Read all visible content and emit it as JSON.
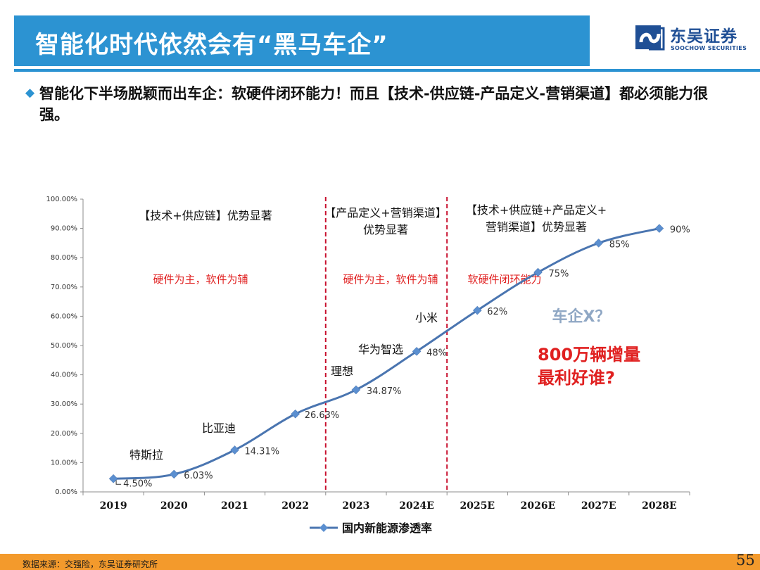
{
  "title": "智能化时代依然会有“黑马车企”",
  "logo": {
    "name_cn": "东吴证券",
    "name_en": "SOOCHOW SECURITIES"
  },
  "headline": "智能化下半场脱颖而出车企：软硬件闭环能力！而且【技术-供应链-产品定义-营销渠道】都必须能力很强。",
  "chart_data": {
    "type": "line",
    "categories": [
      "2019",
      "2020",
      "2021",
      "2022",
      "2023",
      "2024E",
      "2025E",
      "2026E",
      "2027E",
      "2028E"
    ],
    "series": [
      {
        "name": "国内新能源渗透率",
        "values": [
          4.5,
          6.03,
          14.31,
          26.63,
          34.87,
          48,
          62,
          75,
          85,
          90
        ],
        "labels": [
          "4.50%",
          "6.03%",
          "14.31%",
          "26.63%",
          "34.87%",
          "48%",
          "62%",
          "75%",
          "85%",
          "90%"
        ]
      }
    ],
    "yticks": [
      "0.00%",
      "10.00%",
      "20.00%",
      "30.00%",
      "40.00%",
      "50.00%",
      "60.00%",
      "70.00%",
      "80.00%",
      "90.00%",
      "100.00%"
    ],
    "ylim": [
      0,
      100
    ],
    "grid": false,
    "legend": "bottom",
    "dividers_after": [
      "2022",
      "2024E"
    ],
    "phase_headers": [
      {
        "lines": [
          "【技术+供应链】优势显著"
        ]
      },
      {
        "lines": [
          "【产品定义+营销渠道】",
          "优势显著"
        ]
      },
      {
        "lines": [
          "【技术+供应链+产品定义+",
          "营销渠道】优势显著"
        ]
      }
    ],
    "phase_notes": [
      "硬件为主，软件为辅",
      "硬件为主，软件为辅",
      "软硬件闭环能力"
    ],
    "company_annotations": [
      {
        "text": "特斯拉",
        "near": "2019"
      },
      {
        "text": "比亚迪",
        "near": "2021"
      },
      {
        "text": "理想",
        "near": "2023"
      },
      {
        "text": "华为智选",
        "near": "2024E"
      },
      {
        "text": "小米",
        "near": "2024E"
      }
    ],
    "callouts": {
      "question": "车企X？",
      "highlight_lines": [
        "800万辆增量",
        "最利好谁?"
      ]
    },
    "colors": {
      "line": "#4a75b0",
      "marker": "#5b8fd0",
      "divider": "#c8102e",
      "note": "#e02020",
      "callout_question": "#8fa7c4",
      "callout_highlight": "#e02020"
    }
  },
  "footer": {
    "source": "数据来源：交强险，东吴证券研究所",
    "page_number": "55"
  },
  "colors": {
    "title_bar": "#2c93d2",
    "footer_bar": "#f39a2c",
    "brand": "#1f4f95"
  }
}
